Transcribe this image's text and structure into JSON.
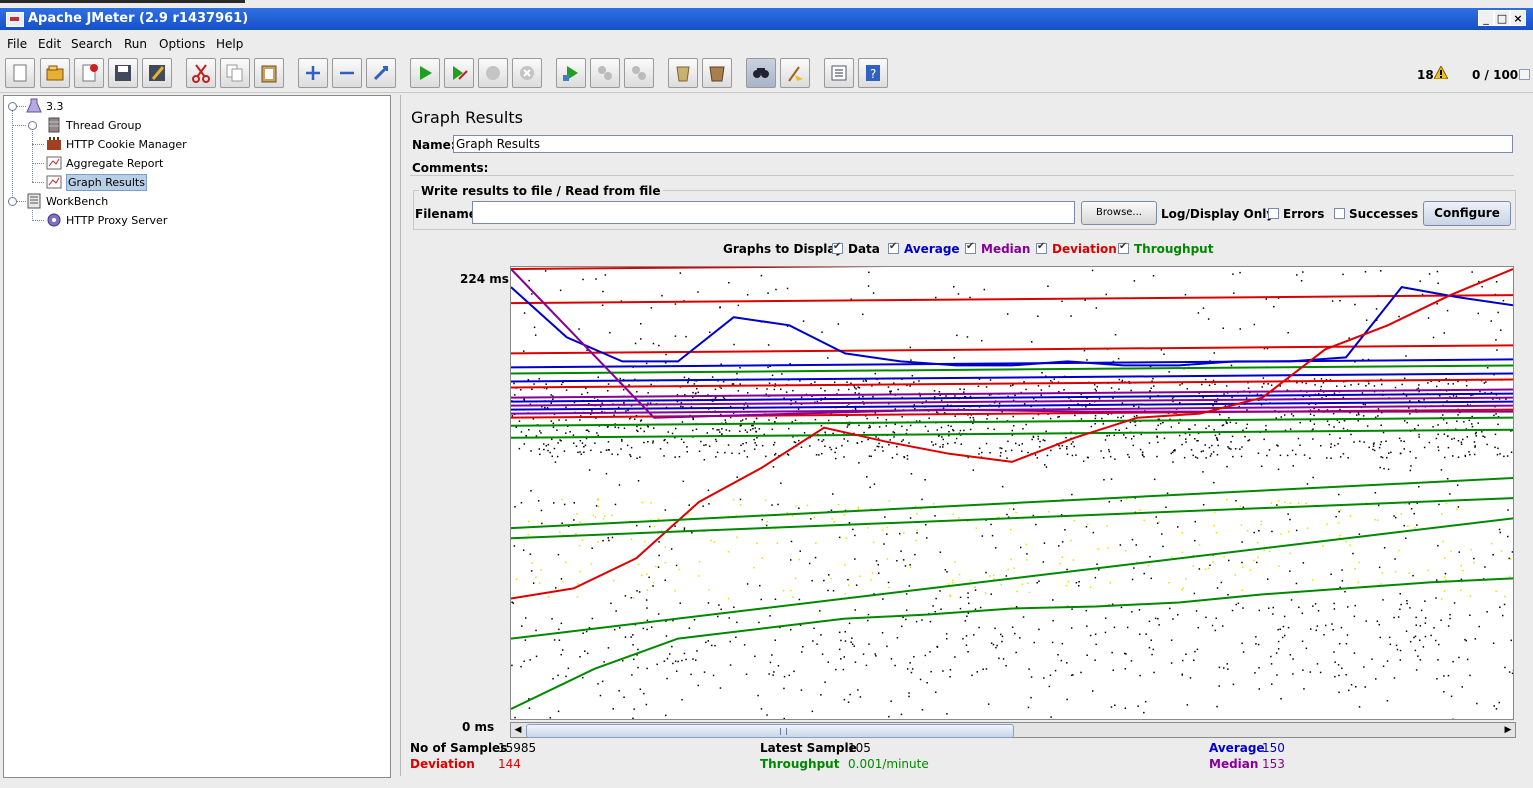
{
  "window": {
    "title": "Apache JMeter (2.9 r1437961)",
    "minimize": "_",
    "maximize": "□",
    "close": "×"
  },
  "menu": [
    "File",
    "Edit",
    "Search",
    "Run",
    "Options",
    "Help"
  ],
  "toolbar": {
    "buttons": [
      "new-icon",
      "open-icon",
      "close-icon",
      "save-icon",
      "save-as-icon",
      "cut-icon",
      "copy-icon",
      "paste-icon",
      "expand-icon",
      "collapse-icon",
      "toggle-icon",
      "start-icon",
      "start-no-pause-icon",
      "stop-icon",
      "shutdown-icon",
      "remote-start-icon",
      "remote-stop-icon",
      "remote-shutdown-icon",
      "clear-icon",
      "clear-all-icon",
      "search-icon",
      "reset-search-icon",
      "function-helper-icon",
      "help-icon"
    ],
    "warning_count": "18",
    "threads": "0 / 100"
  },
  "tree": [
    {
      "label": "3.3",
      "icon": "test-plan-icon"
    },
    {
      "label": "Thread Group",
      "icon": "thread-group-icon"
    },
    {
      "label": "HTTP Cookie Manager",
      "icon": "cookie-manager-icon"
    },
    {
      "label": "Aggregate Report",
      "icon": "report-icon"
    },
    {
      "label": "Graph Results",
      "icon": "graph-icon",
      "selected": true
    },
    {
      "label": "WorkBench",
      "icon": "workbench-icon"
    },
    {
      "label": "HTTP Proxy Server",
      "icon": "proxy-icon"
    }
  ],
  "panel": {
    "title": "Graph Results",
    "name_label": "Name:",
    "name_value": "Graph Results",
    "comments_label": "Comments:",
    "file_section_title": "Write results to file / Read from file",
    "filename_label": "Filename",
    "filename_value": "",
    "browse_label": "Browse...",
    "log_display_label": "Log/Display Only:",
    "errors_label": "Errors",
    "errors_checked": false,
    "successes_label": "Successes",
    "successes_checked": false,
    "configure_label": "Configure"
  },
  "graphs": {
    "heading": "Graphs to Display",
    "options": [
      {
        "label": "Data",
        "checked": true,
        "color": "#000000"
      },
      {
        "label": "Average",
        "checked": true,
        "color": "#0000cc"
      },
      {
        "label": "Median",
        "checked": true,
        "color": "#880099"
      },
      {
        "label": "Deviation",
        "checked": true,
        "color": "#dd0000"
      },
      {
        "label": "Throughput",
        "checked": true,
        "color": "#008800"
      }
    ],
    "y_max_label": "224  ms",
    "y_min_label": "0  ms"
  },
  "chart_data": {
    "type": "scatter",
    "y_unit": "ms",
    "ylim": [
      0,
      224
    ],
    "x": "sample index",
    "series": [
      {
        "name": "Data",
        "color": "#000000",
        "style": "scattered points across 0–224 ms"
      },
      {
        "name": "Average",
        "color": "#0000cc",
        "values_ms": [
          215,
          190,
          178,
          178,
          200,
          196,
          182,
          178,
          176,
          176,
          178,
          176,
          176,
          178,
          178,
          180,
          215,
          210,
          206
        ]
      },
      {
        "name": "Median",
        "color": "#880099",
        "values_ms": [
          224,
          150,
          152,
          154,
          153,
          153,
          153,
          153
        ]
      },
      {
        "name": "Deviation",
        "color": "#dd0000",
        "values_ms": [
          60,
          65,
          80,
          108,
          125,
          145,
          138,
          132,
          128,
          140,
          150,
          152,
          160,
          184,
          196,
          211,
          224
        ]
      },
      {
        "name": "Throughput",
        "color": "#008800",
        "values_ms": [
          5,
          25,
          40,
          45,
          50,
          52,
          55,
          56,
          58,
          62,
          65,
          68,
          70
        ]
      }
    ]
  },
  "stats": {
    "samples_label": "No of Samples",
    "samples_value": "15985",
    "latest_label": "Latest Sample",
    "latest_value": "105",
    "average_label": "Average",
    "average_value": "150",
    "deviation_label": "Deviation",
    "deviation_value": "144",
    "throughput_label": "Throughput",
    "throughput_value": "0.001/minute",
    "median_label": "Median",
    "median_value": "153"
  }
}
